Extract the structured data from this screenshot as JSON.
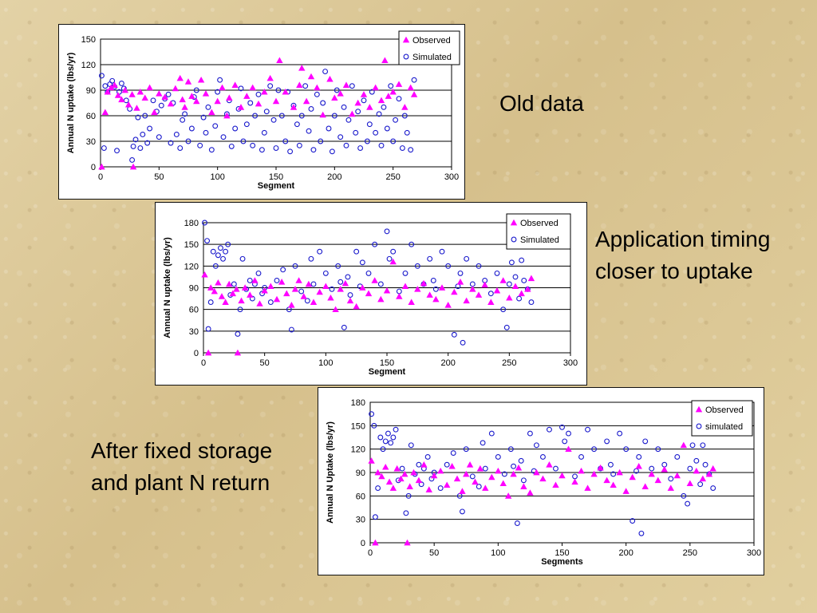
{
  "captions": {
    "old": "Old data",
    "timing_line1": "Application timing",
    "timing_line2": "closer to uptake",
    "fixed_line1": "After fixed storage",
    "fixed_line2": "and plant N return"
  },
  "colors": {
    "observed": "#ff00ff",
    "simulated": "#1a1acc"
  },
  "chart_data": [
    {
      "type": "scatter",
      "xlabel": "Segment",
      "ylabel": "Annual N uptake (lbs/yr)",
      "xlim": [
        0,
        300
      ],
      "ylim": [
        0,
        150
      ],
      "xticks": [
        0,
        50,
        100,
        150,
        200,
        250,
        300
      ],
      "yticks": [
        0,
        30,
        60,
        90,
        120,
        150
      ],
      "grid": "horizontal",
      "legend": "top-right",
      "series": [
        {
          "name": "Observed",
          "marker": "triangle",
          "x": [
            1,
            4,
            6,
            9,
            12,
            15,
            18,
            21,
            24,
            27,
            28,
            31,
            34,
            38,
            42,
            46,
            50,
            55,
            60,
            64,
            68,
            70,
            72,
            75,
            78,
            82,
            86,
            90,
            95,
            100,
            104,
            108,
            110,
            115,
            120,
            125,
            130,
            135,
            140,
            145,
            150,
            153,
            158,
            165,
            170,
            172,
            176,
            180,
            185,
            190,
            196,
            200,
            205,
            210,
            215,
            220,
            225,
            230,
            235,
            240,
            243,
            246,
            250,
            255,
            260,
            265,
            268
          ],
          "y": [
            0,
            64,
            88,
            93,
            96,
            84,
            79,
            90,
            73,
            85,
            0,
            69,
            88,
            81,
            93,
            64,
            86,
            82,
            74,
            92,
            104,
            79,
            70,
            100,
            83,
            77,
            102,
            86,
            64,
            77,
            93,
            60,
            81,
            96,
            70,
            83,
            93,
            74,
            88,
            104,
            77,
            125,
            88,
            70,
            96,
            116,
            77,
            106,
            93,
            61,
            103,
            81,
            86,
            96,
            62,
            75,
            85,
            70,
            93,
            78,
            125,
            83,
            88,
            97,
            70,
            93,
            85
          ]
        },
        {
          "name": "Simulated",
          "marker": "circle",
          "x": [
            1,
            3,
            4,
            6,
            8,
            10,
            12,
            14,
            16,
            18,
            20,
            22,
            25,
            27,
            28,
            30,
            32,
            34,
            36,
            38,
            40,
            42,
            45,
            48,
            50,
            52,
            55,
            58,
            60,
            62,
            65,
            68,
            70,
            72,
            75,
            78,
            80,
            82,
            85,
            88,
            90,
            92,
            95,
            98,
            100,
            102,
            105,
            108,
            110,
            112,
            115,
            118,
            120,
            122,
            125,
            128,
            130,
            132,
            135,
            138,
            140,
            142,
            145,
            148,
            150,
            152,
            155,
            158,
            160,
            162,
            165,
            168,
            170,
            172,
            175,
            178,
            180,
            182,
            185,
            188,
            190,
            192,
            195,
            198,
            200,
            202,
            205,
            208,
            210,
            212,
            215,
            218,
            220,
            222,
            225,
            228,
            230,
            232,
            235,
            238,
            240,
            242,
            245,
            248,
            250,
            252,
            255,
            258,
            260,
            262,
            265,
            268
          ],
          "y": [
            107,
            22,
            95,
            88,
            97,
            101,
            94,
            19,
            88,
            98,
            92,
            78,
            68,
            8,
            24,
            32,
            58,
            22,
            38,
            60,
            28,
            45,
            78,
            65,
            35,
            72,
            80,
            85,
            28,
            75,
            38,
            22,
            55,
            62,
            30,
            45,
            82,
            90,
            25,
            58,
            40,
            70,
            20,
            48,
            88,
            102,
            35,
            62,
            78,
            24,
            45,
            68,
            92,
            30,
            50,
            75,
            25,
            60,
            85,
            20,
            40,
            65,
            95,
            55,
            22,
            90,
            60,
            30,
            88,
            18,
            72,
            50,
            25,
            60,
            95,
            42,
            68,
            20,
            85,
            30,
            75,
            112,
            45,
            18,
            60,
            90,
            35,
            70,
            25,
            55,
            95,
            40,
            65,
            22,
            78,
            30,
            50,
            88,
            40,
            62,
            25,
            70,
            45,
            95,
            30,
            55,
            80,
            22,
            60,
            40,
            20,
            102
          ]
        }
      ]
    },
    {
      "type": "scatter",
      "xlabel": "Segment",
      "ylabel": "Annual N uptake (lbs/yr)",
      "xlim": [
        0,
        300
      ],
      "ylim": [
        0,
        180
      ],
      "xticks": [
        0,
        50,
        100,
        150,
        200,
        250,
        300
      ],
      "yticks": [
        0,
        30,
        60,
        90,
        120,
        150,
        180
      ],
      "grid": "horizontal",
      "legend": "top-right",
      "series": [
        {
          "name": "Observed",
          "marker": "triangle",
          "x": [
            1,
            4,
            6,
            9,
            12,
            15,
            18,
            21,
            24,
            27,
            28,
            31,
            34,
            38,
            42,
            46,
            50,
            55,
            60,
            64,
            68,
            72,
            75,
            78,
            82,
            86,
            90,
            95,
            100,
            104,
            108,
            112,
            116,
            120,
            125,
            130,
            135,
            140,
            145,
            150,
            155,
            160,
            165,
            170,
            175,
            180,
            185,
            190,
            195,
            200,
            205,
            210,
            215,
            220,
            225,
            230,
            235,
            240,
            245,
            250,
            255,
            260,
            265,
            268
          ],
          "y": [
            108,
            0,
            90,
            85,
            97,
            78,
            70,
            95,
            82,
            88,
            0,
            72,
            90,
            80,
            100,
            68,
            86,
            92,
            74,
            98,
            82,
            66,
            88,
            100,
            78,
            95,
            70,
            84,
            92,
            76,
            60,
            88,
            96,
            72,
            64,
            90,
            82,
            100,
            74,
            86,
            126,
            78,
            92,
            70,
            88,
            96,
            80,
            74,
            90,
            66,
            84,
            98,
            72,
            88,
            80,
            94,
            70,
            86,
            100,
            76,
            92,
            82,
            88,
            103
          ]
        },
        {
          "name": "Simulated",
          "marker": "circle",
          "x": [
            1,
            3,
            4,
            6,
            8,
            10,
            12,
            14,
            16,
            18,
            20,
            22,
            25,
            28,
            30,
            32,
            35,
            38,
            40,
            42,
            45,
            48,
            50,
            55,
            60,
            65,
            70,
            72,
            75,
            80,
            85,
            88,
            90,
            95,
            100,
            105,
            110,
            112,
            115,
            118,
            120,
            125,
            128,
            130,
            135,
            140,
            145,
            150,
            152,
            155,
            160,
            165,
            170,
            175,
            180,
            185,
            188,
            190,
            195,
            200,
            205,
            208,
            210,
            212,
            215,
            220,
            225,
            230,
            235,
            240,
            245,
            248,
            250,
            252,
            255,
            258,
            260,
            262,
            265,
            268
          ],
          "y": [
            180,
            155,
            33,
            70,
            140,
            120,
            135,
            145,
            130,
            140,
            150,
            80,
            95,
            26,
            60,
            130,
            88,
            100,
            75,
            95,
            110,
            82,
            90,
            70,
            100,
            115,
            60,
            32,
            120,
            85,
            72,
            130,
            95,
            140,
            110,
            88,
            120,
            98,
            35,
            105,
            80,
            140,
            92,
            125,
            110,
            150,
            95,
            168,
            130,
            140,
            85,
            110,
            150,
            120,
            95,
            130,
            100,
            88,
            140,
            120,
            25,
            92,
            110,
            14,
            130,
            95,
            120,
            100,
            82,
            110,
            60,
            35,
            95,
            125,
            105,
            75,
            128,
            100,
            88,
            70
          ]
        }
      ]
    },
    {
      "type": "scatter",
      "xlabel": "Segments",
      "ylabel": "Annual N Uptake (lbs/yr)",
      "xlim": [
        0,
        300
      ],
      "ylim": [
        0,
        180
      ],
      "xticks": [
        0,
        50,
        100,
        150,
        200,
        250,
        300
      ],
      "yticks": [
        0,
        30,
        60,
        90,
        120,
        150,
        180
      ],
      "grid": "horizontal",
      "legend": "top-right",
      "series": [
        {
          "name": "Observed",
          "marker": "triangle",
          "x": [
            1,
            4,
            6,
            9,
            12,
            15,
            18,
            21,
            24,
            27,
            29,
            31,
            34,
            38,
            42,
            46,
            50,
            55,
            60,
            64,
            68,
            72,
            75,
            78,
            82,
            86,
            90,
            95,
            100,
            104,
            108,
            112,
            116,
            120,
            125,
            130,
            135,
            140,
            145,
            150,
            155,
            160,
            165,
            170,
            175,
            180,
            185,
            190,
            195,
            200,
            205,
            210,
            215,
            220,
            225,
            230,
            235,
            240,
            245,
            250,
            255,
            260,
            265,
            268
          ],
          "y": [
            105,
            0,
            90,
            85,
            97,
            78,
            70,
            95,
            82,
            88,
            0,
            72,
            90,
            80,
            100,
            68,
            86,
            92,
            74,
            98,
            82,
            66,
            88,
            100,
            78,
            95,
            70,
            84,
            92,
            76,
            60,
            88,
            96,
            72,
            64,
            90,
            82,
            100,
            74,
            86,
            120,
            78,
            92,
            70,
            88,
            96,
            80,
            74,
            90,
            66,
            84,
            98,
            72,
            88,
            80,
            94,
            70,
            86,
            125,
            76,
            92,
            82,
            88,
            95
          ]
        },
        {
          "name": "simulated",
          "marker": "circle",
          "x": [
            1,
            3,
            4,
            6,
            8,
            10,
            12,
            14,
            16,
            18,
            20,
            22,
            25,
            28,
            30,
            32,
            35,
            38,
            40,
            42,
            45,
            48,
            50,
            55,
            60,
            65,
            70,
            72,
            75,
            80,
            85,
            88,
            90,
            95,
            100,
            105,
            110,
            112,
            115,
            118,
            120,
            125,
            128,
            130,
            135,
            140,
            145,
            150,
            152,
            155,
            160,
            165,
            170,
            175,
            180,
            185,
            188,
            190,
            195,
            200,
            205,
            208,
            210,
            212,
            215,
            220,
            225,
            230,
            235,
            240,
            245,
            248,
            250,
            252,
            255,
            258,
            260,
            262,
            265,
            268
          ],
          "y": [
            165,
            150,
            33,
            70,
            135,
            120,
            130,
            140,
            128,
            135,
            145,
            80,
            95,
            38,
            60,
            125,
            88,
            100,
            75,
            95,
            110,
            82,
            90,
            70,
            100,
            115,
            60,
            40,
            120,
            85,
            72,
            128,
            95,
            140,
            110,
            88,
            120,
            98,
            25,
            105,
            80,
            140,
            92,
            125,
            110,
            145,
            95,
            148,
            130,
            140,
            85,
            110,
            145,
            120,
            95,
            130,
            100,
            88,
            140,
            120,
            28,
            92,
            110,
            12,
            130,
            95,
            120,
            100,
            82,
            110,
            60,
            50,
            95,
            125,
            105,
            75,
            125,
            100,
            88,
            70
          ]
        }
      ]
    }
  ]
}
